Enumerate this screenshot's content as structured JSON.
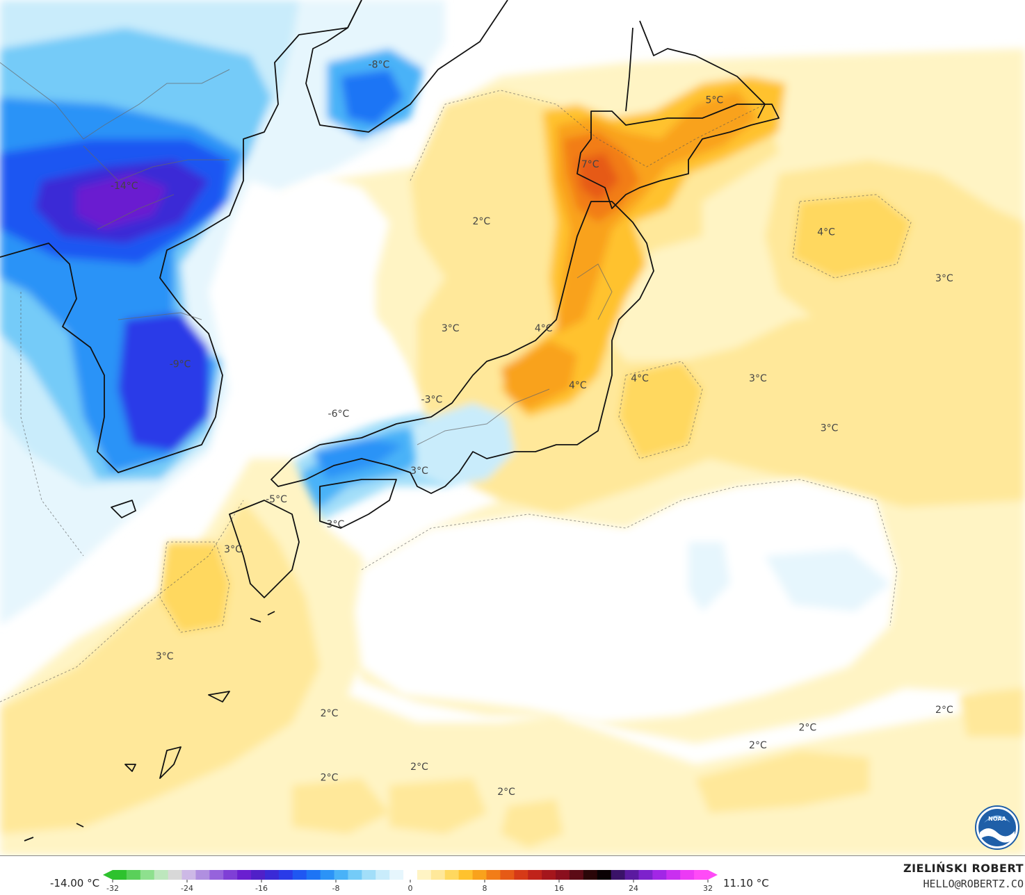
{
  "legend": {
    "min_label": "-14.00 °C",
    "max_label": "11.10 °C",
    "ticks": [
      "-32",
      "-24",
      "-16",
      "-8",
      "0",
      "8",
      "16",
      "24",
      "32"
    ],
    "tick_values": [
      -32,
      -24,
      -16,
      -8,
      0,
      8,
      16,
      24,
      32
    ],
    "range": [
      -32,
      32
    ],
    "colors": [
      "#2ec22e",
      "#5ad05a",
      "#8ee08e",
      "#bde7bd",
      "#d8d8d8",
      "#cdb9e6",
      "#b08fe0",
      "#9663dc",
      "#7f3fd6",
      "#6a1fd0",
      "#5020c8",
      "#3a2ad6",
      "#2a3be8",
      "#1f57f2",
      "#1d74f5",
      "#2b93f7",
      "#49b2f8",
      "#74cbf8",
      "#a2def9",
      "#c9ecfb",
      "#e6f6fd",
      "#ffffff",
      "#fff4c4",
      "#ffe89a",
      "#ffd85f",
      "#ffc22e",
      "#f9a21c",
      "#f27d18",
      "#e65a16",
      "#d63a17",
      "#c0231a",
      "#a5161c",
      "#8a0f1e",
      "#5c0b16",
      "#2a0608",
      "#0a0204",
      "#3a1268",
      "#5b1aa0",
      "#7d22cc",
      "#a226e6",
      "#c92ff0",
      "#ec3af5",
      "#ff4bf7"
    ]
  },
  "map": {
    "temperature_labels": [
      {
        "text": "-14°C",
        "lon": 126.0,
        "lat": 41.2
      },
      {
        "text": "-8°C",
        "lon": 134.2,
        "lat": 44.6
      },
      {
        "text": "-9°C",
        "lon": 127.8,
        "lat": 36.2
      },
      {
        "text": "-6°C",
        "lon": 132.9,
        "lat": 34.8
      },
      {
        "text": "-3°C",
        "lon": 135.9,
        "lat": 35.2
      },
      {
        "text": "-5°C",
        "lon": 130.9,
        "lat": 32.4
      },
      {
        "text": "2°C",
        "lon": 137.5,
        "lat": 40.2
      },
      {
        "text": "5°C",
        "lon": 145.0,
        "lat": 43.6
      },
      {
        "text": "7°C",
        "lon": 141.0,
        "lat": 41.8
      },
      {
        "text": "4°C",
        "lon": 148.6,
        "lat": 39.9
      },
      {
        "text": "3°C",
        "lon": 152.4,
        "lat": 38.6
      },
      {
        "text": "3°C",
        "lon": 136.5,
        "lat": 37.2
      },
      {
        "text": "4°C",
        "lon": 139.5,
        "lat": 37.2
      },
      {
        "text": "4°C",
        "lon": 142.6,
        "lat": 35.8
      },
      {
        "text": "3°C",
        "lon": 146.4,
        "lat": 35.8
      },
      {
        "text": "4°C",
        "lon": 140.6,
        "lat": 35.6
      },
      {
        "text": "3°C",
        "lon": 148.7,
        "lat": 34.4
      },
      {
        "text": "3°C",
        "lon": 135.5,
        "lat": 33.2
      },
      {
        "text": "3°C",
        "lon": 132.8,
        "lat": 31.7
      },
      {
        "text": "3°C",
        "lon": 129.5,
        "lat": 31.0
      },
      {
        "text": "3°C",
        "lon": 127.3,
        "lat": 28.0
      },
      {
        "text": "2°C",
        "lon": 132.6,
        "lat": 26.4
      },
      {
        "text": "2°C",
        "lon": 132.6,
        "lat": 24.6
      },
      {
        "text": "2°C",
        "lon": 135.5,
        "lat": 24.9
      },
      {
        "text": "2°C",
        "lon": 138.3,
        "lat": 24.2
      },
      {
        "text": "2°C",
        "lon": 146.4,
        "lat": 25.5
      },
      {
        "text": "2°C",
        "lon": 148.0,
        "lat": 26.0
      },
      {
        "text": "2°C",
        "lon": 152.4,
        "lat": 26.5
      }
    ]
  },
  "credit": {
    "name": "ZIELIŃSKI ROBERT",
    "email": "HELLO@ROBERTZ.CO"
  },
  "logo": {
    "name": "noaa-logo",
    "text": "NOAA"
  }
}
